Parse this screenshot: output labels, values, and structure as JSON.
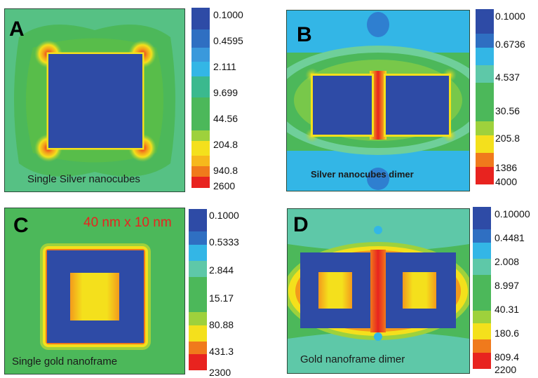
{
  "colors": {
    "background_green": "#4cb85a",
    "cube_blue": "#2e4ba6",
    "hot_yellow": "#f4e01c",
    "hot_red": "#e8231f",
    "light_blue": "#33b6e6"
  },
  "panels": [
    {
      "letter": "A",
      "caption": "Single Silver nanocubes",
      "colorbar_ticks": [
        "0.1000",
        "0.4595",
        "2.111",
        "9.699",
        "44.56",
        "204.8",
        "940.8",
        "2600"
      ]
    },
    {
      "letter": "B",
      "caption": "Silver nanocubes dimer",
      "colorbar_ticks": [
        "0.1000",
        "0.6736",
        "4.537",
        "30.56",
        "205.8",
        "1386",
        "4000"
      ]
    },
    {
      "letter": "C",
      "caption": "Single gold nanoframe",
      "size_label": "40 nm x 10 nm",
      "colorbar_ticks": [
        "0.1000",
        "0.5333",
        "2.844",
        "15.17",
        "80.88",
        "431.3",
        "2300"
      ]
    },
    {
      "letter": "D",
      "caption": "Gold nanoframe dimer",
      "colorbar_ticks": [
        "0.10000",
        "0.4481",
        "2.008",
        "8.997",
        "40.31",
        "180.6",
        "809.4",
        "2200"
      ]
    }
  ]
}
